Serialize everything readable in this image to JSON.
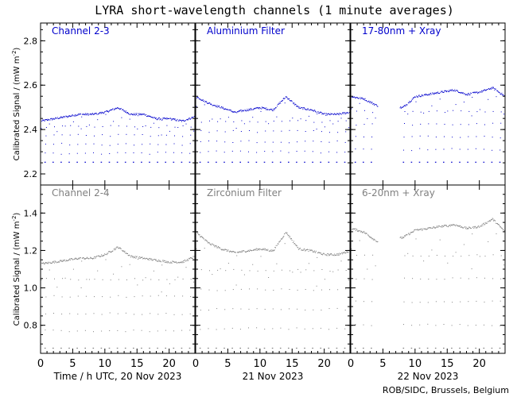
{
  "title": "LYRA short-wavelength channels (1 minute averages)",
  "credit": "ROB/SIDC, Brussels, Belgium",
  "colors": {
    "top": "#0000cc",
    "bottom": "#808080",
    "axis": "#000000"
  },
  "x_axis": {
    "tick_labels": [
      "0",
      "5",
      "10",
      "15",
      "20"
    ],
    "day_labels": [
      "Time / h UTC, 20 Nov 2023",
      "21 Nov 2023",
      "22 Nov 2023"
    ]
  },
  "chart_data": [
    {
      "type": "scatter",
      "row": "top",
      "ylabel": "Calibrated Signal  / (mW m",
      "ylabel_sup": "-2",
      "ylim": [
        2.15,
        2.88
      ],
      "yticks": [
        "2.2",
        "2.4",
        "2.6",
        "2.8"
      ],
      "panels": [
        {
          "name": "Channel 2-3",
          "day": "20 Nov 2023",
          "baseline": 2.455,
          "floor": 2.255,
          "x": [
            0,
            2,
            4,
            6,
            8,
            10,
            12,
            14,
            16,
            18,
            20,
            22,
            24
          ],
          "y": [
            2.44,
            2.45,
            2.46,
            2.47,
            2.47,
            2.48,
            2.5,
            2.47,
            2.47,
            2.45,
            2.45,
            2.44,
            2.46
          ]
        },
        {
          "name": "Aluminium Filter",
          "day": "21 Nov 2023",
          "baseline": 2.485,
          "floor": 2.255,
          "x": [
            0,
            2,
            4,
            6,
            8,
            10,
            12,
            14,
            16,
            18,
            20,
            22,
            24
          ],
          "y": [
            2.55,
            2.52,
            2.5,
            2.48,
            2.49,
            2.5,
            2.49,
            2.55,
            2.5,
            2.49,
            2.47,
            2.47,
            2.48
          ]
        },
        {
          "name": "17-80nm + Xray",
          "day": "22 Nov 2023",
          "baseline": 2.54,
          "floor": 2.255,
          "x": [
            0,
            2,
            4,
            8,
            10,
            12,
            14,
            16,
            18,
            20,
            22,
            24
          ],
          "y": [
            2.55,
            2.54,
            2.51,
            2.5,
            2.55,
            2.56,
            2.57,
            2.58,
            2.56,
            2.57,
            2.59,
            2.55
          ]
        }
      ]
    },
    {
      "type": "scatter",
      "row": "bottom",
      "ylabel": "Calibrated Signal  / (mW m",
      "ylabel_sup": "-2",
      "ylim": [
        0.65,
        1.55
      ],
      "yticks": [
        "0.8",
        "1.0",
        "1.2",
        "1.4"
      ],
      "panels": [
        {
          "name": "Channel 2-4",
          "day": "20 Nov 2023",
          "baseline": 1.14,
          "floor": 0.68,
          "x": [
            0,
            2,
            4,
            6,
            8,
            10,
            12,
            14,
            16,
            18,
            20,
            22,
            24
          ],
          "y": [
            1.13,
            1.14,
            1.15,
            1.16,
            1.16,
            1.18,
            1.22,
            1.17,
            1.16,
            1.15,
            1.14,
            1.14,
            1.17
          ]
        },
        {
          "name": "Zirconium Filter",
          "day": "21 Nov 2023",
          "baseline": 1.2,
          "floor": 0.68,
          "x": [
            0,
            2,
            4,
            6,
            8,
            10,
            12,
            14,
            16,
            18,
            20,
            22,
            24
          ],
          "y": [
            1.3,
            1.24,
            1.21,
            1.19,
            1.2,
            1.21,
            1.2,
            1.3,
            1.21,
            1.2,
            1.18,
            1.18,
            1.2
          ]
        },
        {
          "name": "6-20nm + Xray",
          "day": "22 Nov 2023",
          "baseline": 1.3,
          "floor": 0.68,
          "x": [
            0,
            2,
            4,
            8,
            10,
            12,
            14,
            16,
            18,
            20,
            22,
            24
          ],
          "y": [
            1.32,
            1.3,
            1.25,
            1.27,
            1.31,
            1.32,
            1.33,
            1.34,
            1.32,
            1.33,
            1.37,
            1.3
          ]
        }
      ]
    }
  ]
}
